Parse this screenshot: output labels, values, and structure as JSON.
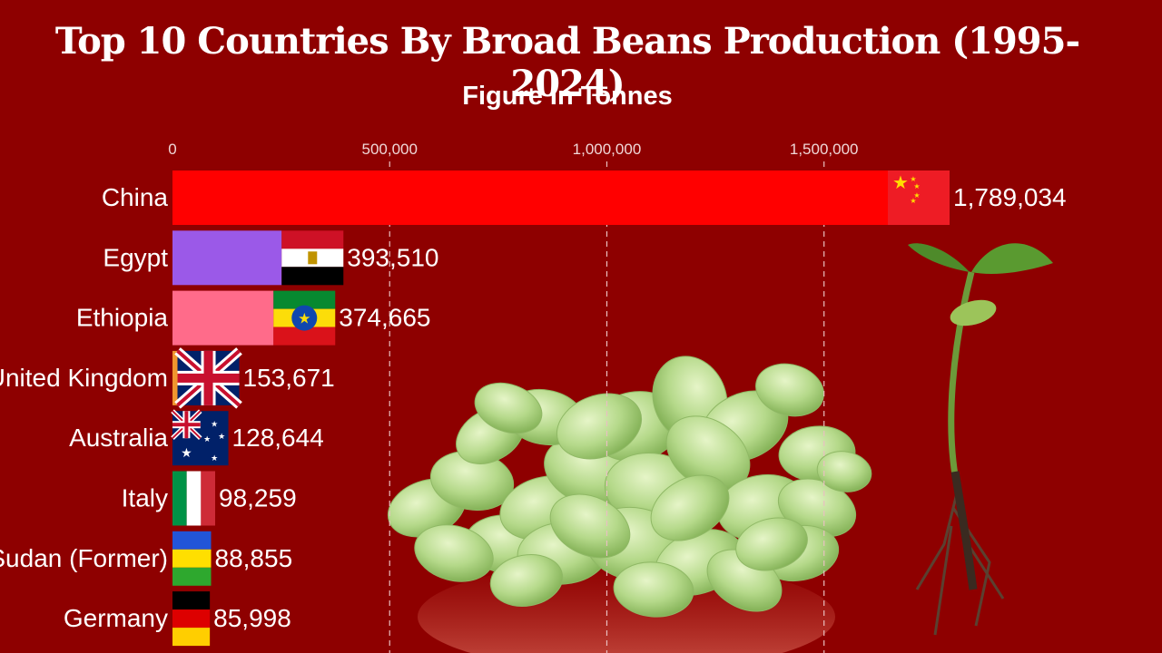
{
  "title": "Top 10 Countries By Broad Beans Production (1995-2024)",
  "subtitle": "Figure In Tonnes",
  "chart_data": {
    "type": "bar",
    "orientation": "horizontal",
    "title": "Top 10 Countries By Broad Beans Production (1995-2024)",
    "subtitle": "Figure In Tonnes",
    "xlabel": "",
    "ylabel": "",
    "xlim": [
      0,
      1800000
    ],
    "ticks": [
      0,
      500000,
      1000000,
      1500000
    ],
    "tick_labels": [
      "0",
      "500,000",
      "1,000,000",
      "1,500,000"
    ],
    "grid": true,
    "categories": [
      "China",
      "Egypt",
      "Ethiopia",
      "United Kingdom",
      "Australia",
      "Italy",
      "Sudan (Former)",
      "Germany"
    ],
    "values": [
      1789034,
      393510,
      374665,
      153671,
      128644,
      98259,
      88855,
      85998
    ],
    "value_labels": [
      "1,789,034",
      "393,510",
      "374,665",
      "153,671",
      "128,644",
      "98,259",
      "88,855",
      "85,998"
    ],
    "colors": [
      "#ff0000",
      "#9b59e8",
      "#ff6b8a",
      "#f0962e",
      "#f7c233",
      "#5fc25f",
      "#3aa0e8",
      "#c98a3a"
    ],
    "flags": [
      "china-flag",
      "egypt-flag",
      "ethiopia-flag",
      "united-kingdom-flag",
      "australia-flag",
      "italy-flag",
      "sudan-flag",
      "germany-flag"
    ]
  },
  "decorations": [
    "broad-beans-pile-image",
    "bean-sprout-image"
  ]
}
